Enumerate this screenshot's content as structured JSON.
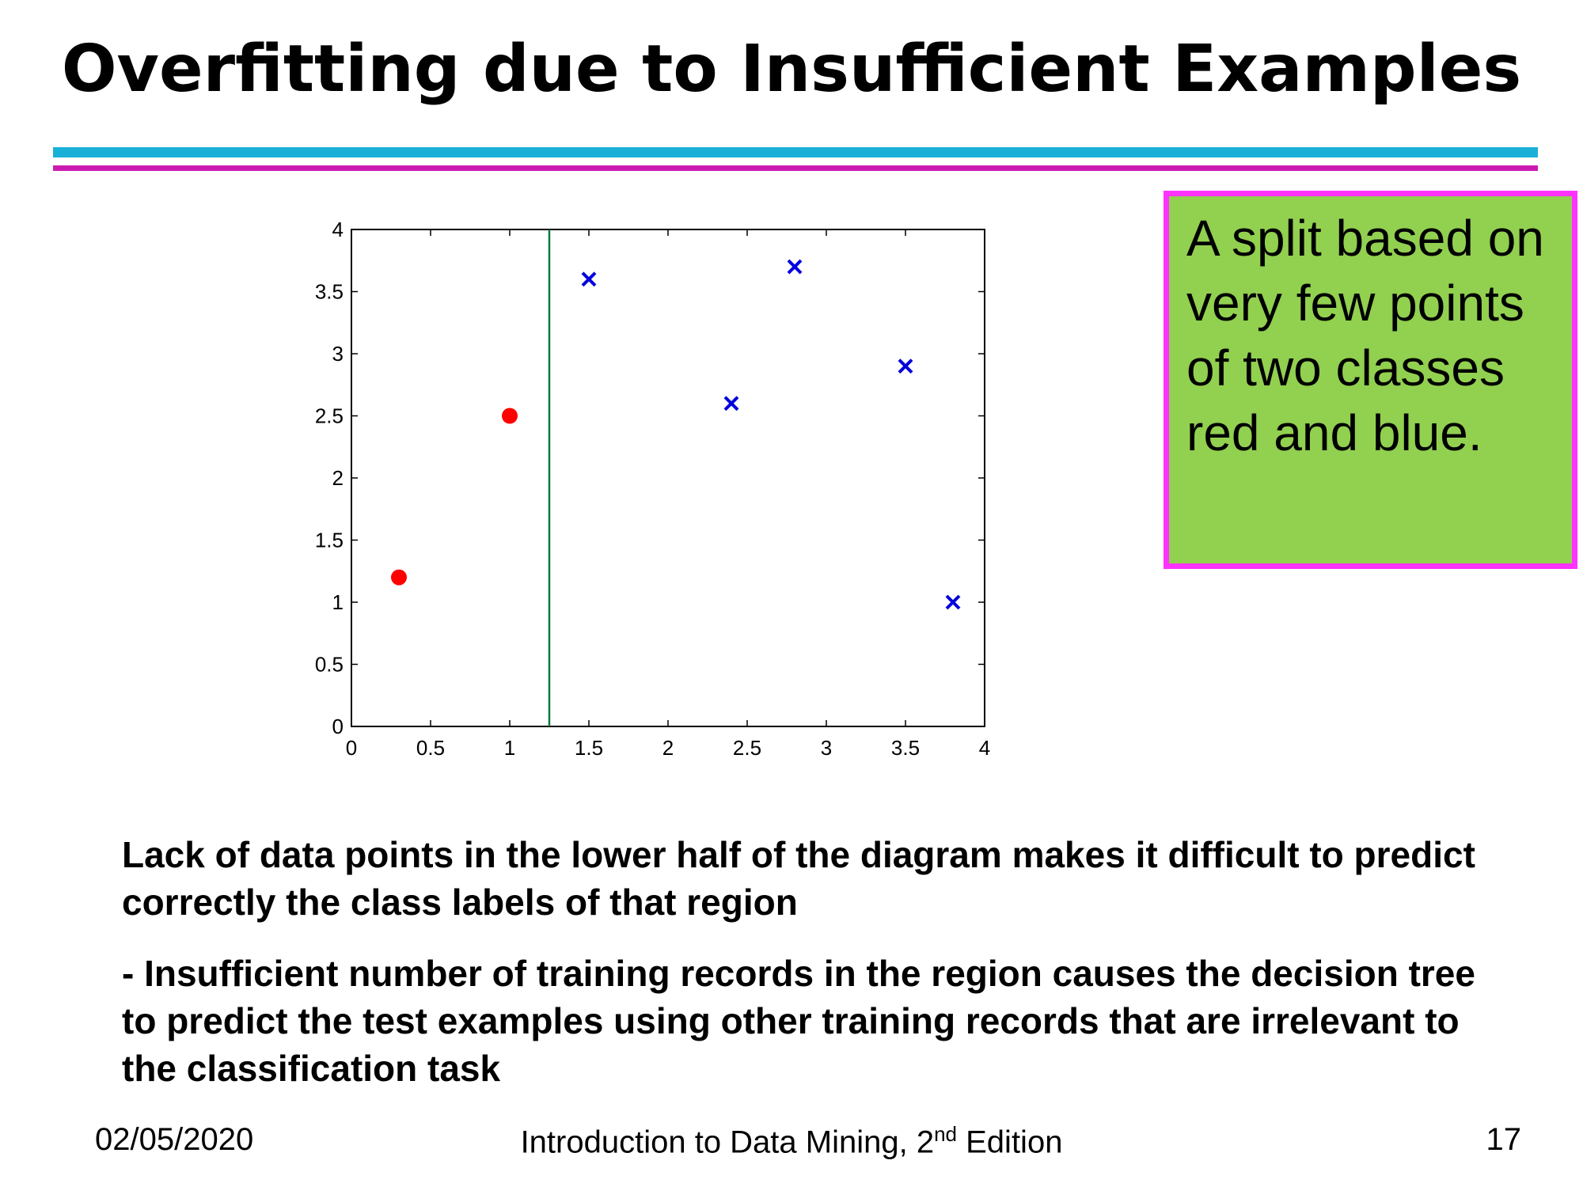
{
  "slide": {
    "title": "Overfitting due to Insufficient Examples",
    "note": "A split based on very few points of two classes red and blue.",
    "paragraph1": "Lack of data points in the lower half of the diagram makes it difficult to predict correctly the class labels of that region",
    "paragraph2": "- Insufficient number of training records in the region causes the decision tree to predict the test examples using other training records that are irrelevant to the classification task",
    "footer": {
      "date": "02/05/2020",
      "book_prefix": "Introduction to Data Mining, 2",
      "book_sup": "nd",
      "book_suffix": " Edition",
      "page": "17"
    }
  },
  "colors": {
    "rule_cyan": "#1ab0d8",
    "rule_magenta": "#cc1bb2",
    "note_fill": "#92d050",
    "note_border": "#ff33ff",
    "red_class": "#ff0000",
    "blue_class": "#0000dd",
    "split_line": "#007a3d"
  },
  "chart_data": {
    "type": "scatter",
    "xlim": [
      0,
      4
    ],
    "ylim": [
      0,
      4
    ],
    "x_ticks": [
      "0",
      "0.5",
      "1",
      "1.5",
      "2",
      "2.5",
      "3",
      "3.5",
      "4"
    ],
    "y_ticks": [
      "0",
      "0.5",
      "1",
      "1.5",
      "2",
      "2.5",
      "3",
      "3.5",
      "4"
    ],
    "grid": false,
    "series": [
      {
        "marker": "circle",
        "color": "#ff0000",
        "points": [
          [
            0.3,
            1.2
          ],
          [
            1.0,
            2.5
          ]
        ]
      },
      {
        "marker": "x",
        "color": "#0000dd",
        "points": [
          [
            1.5,
            3.6
          ],
          [
            2.4,
            2.6
          ],
          [
            2.8,
            3.7
          ],
          [
            3.5,
            2.9
          ],
          [
            3.8,
            1.0
          ]
        ]
      }
    ],
    "vertical_split": {
      "x": 1.25,
      "color": "#007a3d"
    }
  }
}
